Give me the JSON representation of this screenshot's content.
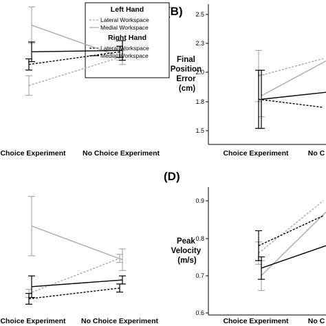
{
  "legend": {
    "left_hand_heading": "Left Hand",
    "right_hand_heading": "Right Hand",
    "entries": [
      {
        "label": "Lateral Workspace",
        "color": "#aaaaaa",
        "dash": true
      },
      {
        "label": "Medial Workspace",
        "color": "#aaaaaa",
        "dash": false
      },
      {
        "label": "Lateral Workspace",
        "color": "#000000",
        "dash": true
      },
      {
        "label": "Medial Workspace",
        "color": "#000000",
        "dash": false
      }
    ]
  },
  "chart_data": [
    {
      "panel": "A",
      "type": "line",
      "title": "",
      "categories": [
        "Choice Experiment",
        "No Choice Experiment"
      ],
      "category_labels": [
        "Choice Experiment",
        "No Choice Experiment"
      ],
      "ylabel": "",
      "ylim": [
        0,
        1
      ],
      "yticks": [],
      "series": [
        {
          "name": "Left Hand Lateral Workspace",
          "color": "#aaaaaa",
          "dash": true,
          "values": [
            0.42,
            0.62
          ],
          "err": [
            0.07,
            0.02
          ]
        },
        {
          "name": "Left Hand Medial Workspace",
          "color": "#aaaaaa",
          "dash": false,
          "values": [
            0.85,
            0.62
          ],
          "err": [
            0.13,
            0.05
          ]
        },
        {
          "name": "Right Hand Lateral Workspace",
          "color": "#000000",
          "dash": true,
          "values": [
            0.57,
            0.66
          ],
          "err": [
            0.04,
            0.04
          ]
        },
        {
          "name": "Right Hand Medial Workspace",
          "color": "#000000",
          "dash": false,
          "values": [
            0.66,
            0.67
          ],
          "err": [
            0.07,
            0.07
          ]
        }
      ]
    },
    {
      "panel": "B",
      "type": "line",
      "title": "(B)",
      "categories": [
        "Choice Experiment",
        "No Choice Experiment"
      ],
      "category_labels": [
        "Choice Experiment",
        "No C"
      ],
      "ylabel": "Final Position Error (cm)",
      "ylabel_lines": [
        "Final",
        "Position",
        "Error",
        "(cm)"
      ],
      "ylim": [
        1.4,
        2.6
      ],
      "yticks": [
        "1.5",
        "1.8",
        "2.0",
        "2.3",
        "2.5"
      ],
      "yticks_values": [
        1.5,
        1.8,
        2.0,
        2.3,
        2.5
      ],
      "series": [
        {
          "name": "Left Hand Lateral Workspace",
          "color": "#aaaaaa",
          "dash": true,
          "values": [
            1.97,
            2.12
          ],
          "err": [
            0.22,
            0.0
          ]
        },
        {
          "name": "Left Hand Medial Workspace",
          "color": "#aaaaaa",
          "dash": false,
          "values": [
            1.8,
            2.1
          ],
          "err": [
            0.18,
            0.0
          ]
        },
        {
          "name": "Right Hand Lateral Workspace",
          "color": "#000000",
          "dash": true,
          "values": [
            1.77,
            1.7
          ],
          "err": [
            0.25,
            0.0
          ]
        },
        {
          "name": "Right Hand Medial Workspace",
          "color": "#000000",
          "dash": false,
          "values": [
            1.77,
            1.83
          ],
          "err": [
            0.25,
            0.0
          ]
        }
      ]
    },
    {
      "panel": "C",
      "type": "line",
      "title": "",
      "categories": [
        "Choice Experiment",
        "No Choice Experiment"
      ],
      "category_labels": [
        "Choice Experiment",
        "No Choice Experiment"
      ],
      "ylabel": "",
      "ylim": [
        0,
        1
      ],
      "yticks": [],
      "series": [
        {
          "name": "Left Hand Lateral Workspace",
          "color": "#aaaaaa",
          "dash": true,
          "values": [
            0.16,
            0.42
          ],
          "err": [
            0.03,
            0.03
          ]
        },
        {
          "name": "Left Hand Medial Workspace",
          "color": "#aaaaaa",
          "dash": false,
          "values": [
            0.66,
            0.41
          ],
          "err": [
            0.22,
            0.08
          ]
        },
        {
          "name": "Right Hand Lateral Workspace",
          "color": "#000000",
          "dash": true,
          "values": [
            0.12,
            0.2
          ],
          "err": [
            0.04,
            0.03
          ]
        },
        {
          "name": "Right Hand Medial Workspace",
          "color": "#000000",
          "dash": false,
          "values": [
            0.21,
            0.26
          ],
          "err": [
            0.08,
            0.03
          ]
        }
      ]
    },
    {
      "panel": "D",
      "type": "line",
      "title": "(D)",
      "categories": [
        "Choice Experiment",
        "No Choice Experiment"
      ],
      "category_labels": [
        "Choice Experiment",
        "No C"
      ],
      "ylabel": "Peak Velocity (m/s)",
      "ylabel_lines": [
        "Peak",
        "Velocity",
        "(m/s)"
      ],
      "ylim": [
        0.6,
        0.95
      ],
      "yticks": [
        "0.6",
        "0.7",
        "0.8",
        "0.9"
      ],
      "yticks_values": [
        0.6,
        0.7,
        0.8,
        0.9
      ],
      "series": [
        {
          "name": "Left Hand Lateral Workspace",
          "color": "#aaaaaa",
          "dash": true,
          "values": [
            0.76,
            0.9
          ],
          "err": [
            0.03,
            0.0
          ]
        },
        {
          "name": "Left Hand Medial Workspace",
          "color": "#aaaaaa",
          "dash": false,
          "values": [
            0.7,
            0.87
          ],
          "err": [
            0.04,
            0.0
          ]
        },
        {
          "name": "Right Hand Lateral Workspace",
          "color": "#000000",
          "dash": true,
          "values": [
            0.78,
            0.86
          ],
          "err": [
            0.04,
            0.0
          ]
        },
        {
          "name": "Right Hand Medial Workspace",
          "color": "#000000",
          "dash": false,
          "values": [
            0.72,
            0.78
          ],
          "err": [
            0.03,
            0.0
          ]
        }
      ]
    }
  ]
}
